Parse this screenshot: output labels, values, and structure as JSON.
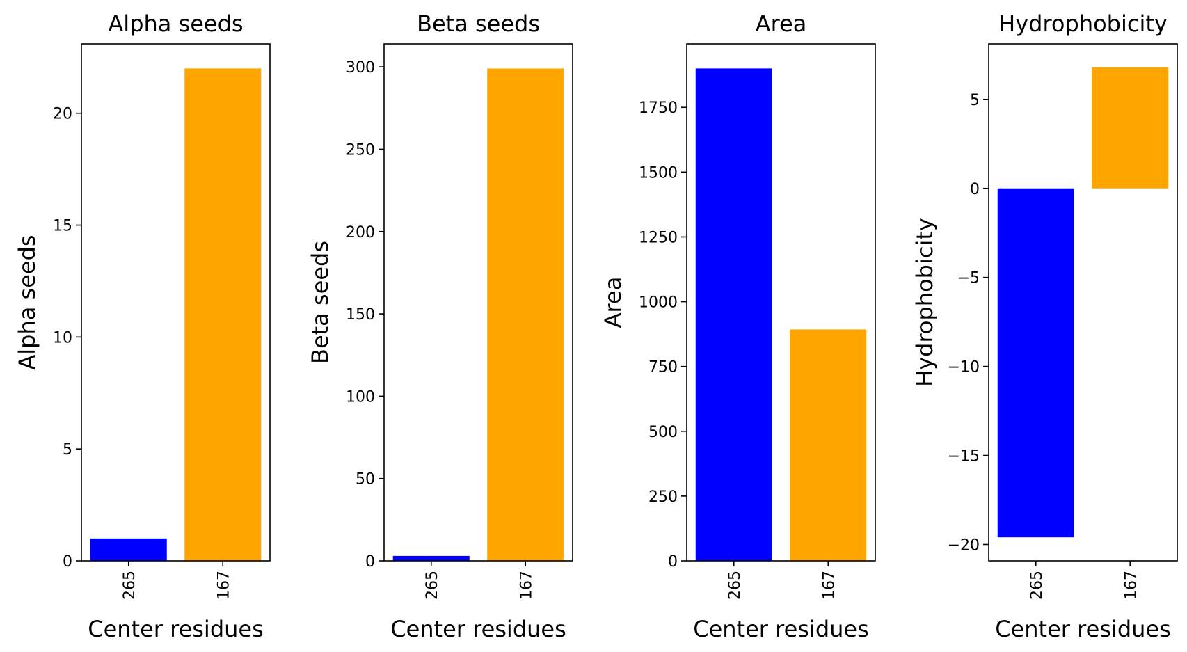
{
  "chart_data": [
    {
      "type": "bar",
      "title": "Alpha seeds",
      "xlabel": "Center residues",
      "ylabel": "Alpha seeds",
      "categories": [
        "265",
        "167"
      ],
      "values": [
        1,
        22
      ],
      "colors": [
        "#0000ff",
        "#ffa500"
      ],
      "ylim": [
        0,
        23.1
      ],
      "yticks": [
        0,
        5,
        10,
        15,
        20
      ],
      "ytick_labels": [
        "0",
        "5",
        "10",
        "15",
        "20"
      ],
      "grid": false
    },
    {
      "type": "bar",
      "title": "Beta seeds",
      "xlabel": "Center residues",
      "ylabel": "Beta seeds",
      "categories": [
        "265",
        "167"
      ],
      "values": [
        3,
        299
      ],
      "colors": [
        "#0000ff",
        "#ffa500"
      ],
      "ylim": [
        0,
        314
      ],
      "yticks": [
        0,
        50,
        100,
        150,
        200,
        250,
        300
      ],
      "ytick_labels": [
        "0",
        "50",
        "100",
        "150",
        "200",
        "250",
        "300"
      ],
      "grid": false
    },
    {
      "type": "bar",
      "title": "Area",
      "xlabel": "Center residues",
      "ylabel": "Area",
      "categories": [
        "265",
        "167"
      ],
      "values": [
        1900,
        893
      ],
      "colors": [
        "#0000ff",
        "#ffa500"
      ],
      "ylim": [
        0,
        1995
      ],
      "yticks": [
        0,
        250,
        500,
        750,
        1000,
        1250,
        1500,
        1750
      ],
      "ytick_labels": [
        "0",
        "250",
        "500",
        "750",
        "1000",
        "1250",
        "1500",
        "1750"
      ],
      "grid": false
    },
    {
      "type": "bar",
      "title": "Hydrophobicity",
      "xlabel": "Center residues",
      "ylabel": "Hydrophobicity",
      "categories": [
        "265",
        "167"
      ],
      "values": [
        -19.6,
        6.8
      ],
      "colors": [
        "#0000ff",
        "#ffa500"
      ],
      "ylim": [
        -20.92,
        8.12
      ],
      "yticks": [
        -20,
        -15,
        -10,
        -5,
        0,
        5
      ],
      "ytick_labels": [
        "−20",
        "−15",
        "−10",
        "−5",
        "0",
        "5"
      ],
      "grid": false
    }
  ]
}
